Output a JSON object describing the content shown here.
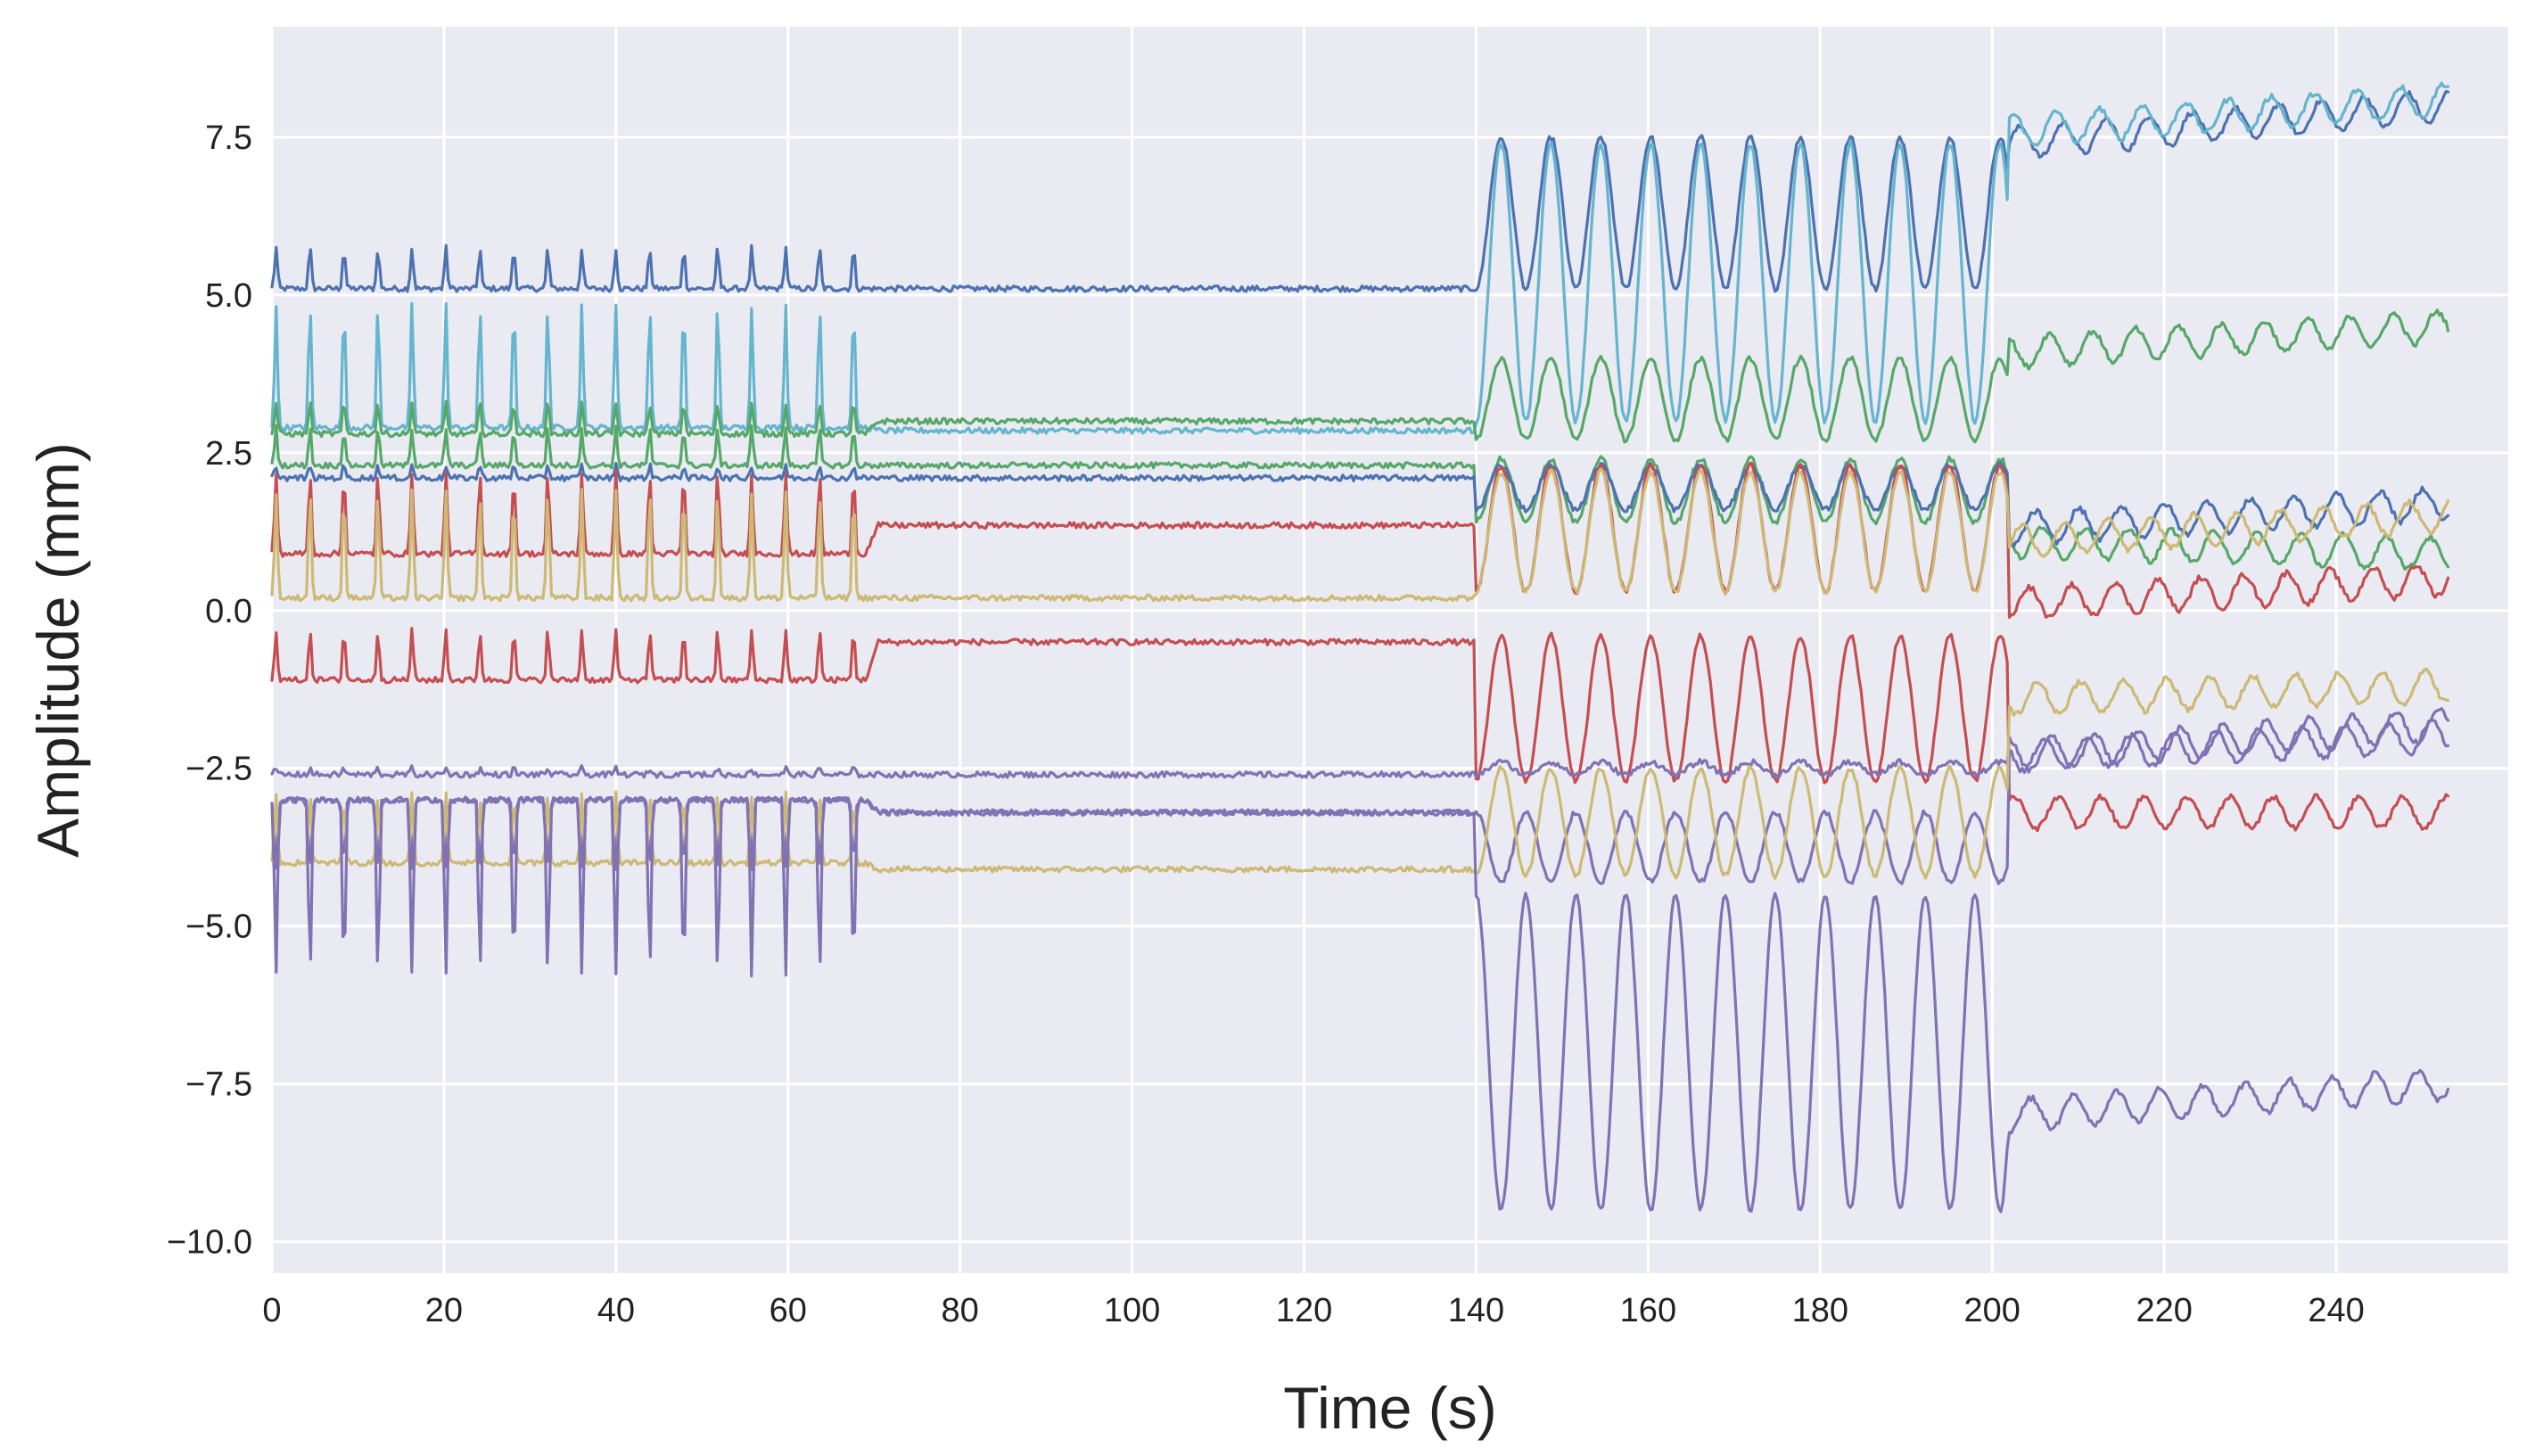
{
  "chart_data": {
    "type": "line",
    "title": "",
    "xlabel": "Time (s)",
    "ylabel": "Amplitude (mm)",
    "xlim": [
      0,
      260
    ],
    "ylim": [
      -10.5,
      9.25
    ],
    "grid": true,
    "legend": "none",
    "background": "#eaeaf2",
    "x_ticks": [
      0,
      20,
      40,
      60,
      80,
      100,
      120,
      140,
      160,
      180,
      200,
      220,
      240
    ],
    "x_tick_labels": [
      "0",
      "20",
      "40",
      "60",
      "80",
      "100",
      "120",
      "140",
      "160",
      "180",
      "200",
      "220",
      "240"
    ],
    "y_ticks": [
      -10.0,
      -7.5,
      -5.0,
      -2.5,
      0.0,
      2.5,
      5.0,
      7.5
    ],
    "y_tick_labels": [
      "−10.0",
      "−7.5",
      "−5.0",
      "−2.5",
      "0.0",
      "2.5",
      "5.0",
      "7.5"
    ],
    "segments": {
      "phase1_end_s": 69,
      "rest_end_s": 140,
      "phase2_end_s": 202,
      "end_s": 253
    },
    "series": [
      {
        "name": "blue-upper",
        "color": "#4c72b0",
        "rest": 5.1,
        "p1_base": 5.1,
        "p1_peak": 5.75,
        "p2_base": 5.1,
        "p2_peak": 7.5,
        "p3_start": 7.4,
        "p3_end": 8.0
      },
      {
        "name": "cyan",
        "color": "#64b5cd",
        "rest": 2.85,
        "p1_base": 2.9,
        "p1_peak": 4.85,
        "p2_base": 3.0,
        "p2_peak": 7.4,
        "p3_start": 7.6,
        "p3_end": 8.1
      },
      {
        "name": "green-upper",
        "color": "#55a868",
        "rest": 3.0,
        "p1_base": 2.8,
        "p1_peak": 3.3,
        "p2_base": 2.7,
        "p2_peak": 4.0,
        "p3_start": 4.1,
        "p3_end": 4.5
      },
      {
        "name": "green-lower",
        "color": "#55a868",
        "rest": 2.3,
        "p1_base": 2.3,
        "p1_peak": 2.9,
        "p2_base": 1.4,
        "p2_peak": 2.4,
        "p3_start": 1.1,
        "p3_end": 0.9
      },
      {
        "name": "blue-lower",
        "color": "#4c72b0",
        "rest": 2.1,
        "p1_base": 2.1,
        "p1_peak": 2.3,
        "p2_base": 1.6,
        "p2_peak": 2.3,
        "p3_start": 1.3,
        "p3_end": 1.7
      },
      {
        "name": "red-upper",
        "color": "#c44e52",
        "rest": 1.35,
        "p1_base": 0.9,
        "p1_peak": 2.2,
        "p2_base": 0.3,
        "p2_peak": 2.3,
        "p3_start": 0.1,
        "p3_end": 0.5
      },
      {
        "name": "yellow-upper",
        "color": "#ccb974",
        "rest": 0.2,
        "p1_base": 0.2,
        "p1_peak": 1.9,
        "p2_base": 0.3,
        "p2_peak": 2.2,
        "p3_start": 1.1,
        "p3_end": 1.5
      },
      {
        "name": "red-lower",
        "color": "#c44e52",
        "rest": -0.5,
        "p1_base": -1.1,
        "p1_peak": -0.3,
        "p2_base": -2.7,
        "p2_peak": -0.4,
        "p3_start": -3.2,
        "p3_end": -3.2
      },
      {
        "name": "purple-upper",
        "color": "#8172b3",
        "rest": -2.6,
        "p1_base": -2.6,
        "p1_peak": -2.5,
        "p2_base": -2.6,
        "p2_peak": -2.4,
        "p3_start": -2.3,
        "p3_end": -1.8
      },
      {
        "name": "purple-mid",
        "color": "#8172b3",
        "rest": -3.2,
        "p1_base": -3.0,
        "p1_peak": -4.1,
        "p2_base": -3.2,
        "p2_peak": -4.3,
        "p3_start": -2.3,
        "p3_end": -2.0
      },
      {
        "name": "yellow-lower",
        "color": "#ccb974",
        "rest": -4.1,
        "p1_base": -4.0,
        "p1_peak": -2.9,
        "p2_base": -4.2,
        "p2_peak": -2.5,
        "p3_start": -1.4,
        "p3_end": -1.2
      },
      {
        "name": "purple-lower",
        "color": "#8172b3",
        "rest": -3.2,
        "p1_base": -3.0,
        "p1_peak": -5.8,
        "p2_base": -4.5,
        "p2_peak": -9.5,
        "p3_start": -8.0,
        "p3_end": -7.5
      }
    ]
  }
}
